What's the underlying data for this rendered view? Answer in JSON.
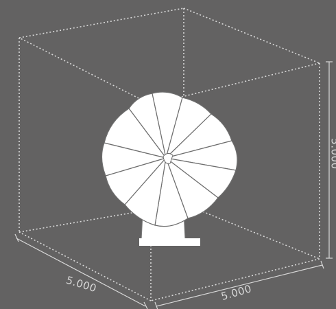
{
  "viewport": {
    "background_color": "#636262",
    "line_color": "#d9d9d9",
    "model_color": "#ffffff",
    "model_outline_color": "#7a7a7a"
  },
  "dimensions": {
    "depth_label": "5.000",
    "width_label": "5.000",
    "height_label": "5.000"
  },
  "model": {
    "icon": "fan-sculpture-icon",
    "petal_count": 12
  }
}
